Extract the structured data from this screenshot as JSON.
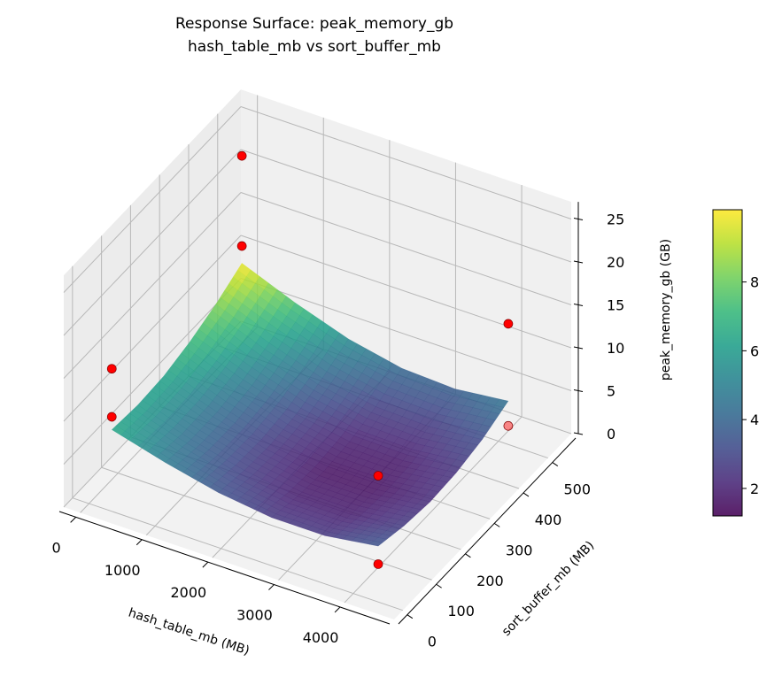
{
  "chart_data": {
    "type": "surface3d",
    "title": "Response Surface: peak_memory_gb",
    "subtitle": "hash_table_mb vs sort_buffer_mb",
    "xlabel": "hash_table_mb (MB)",
    "ylabel": "sort_buffer_mb (MB)",
    "zlabel": "peak_memory_gb (GB)",
    "xlim": [
      -250,
      4750
    ],
    "ylim": [
      -30,
      580
    ],
    "zlim": [
      0,
      27
    ],
    "xticks": [
      "0",
      "1000",
      "2000",
      "3000",
      "4000"
    ],
    "yticks": [
      "0",
      "100",
      "200",
      "300",
      "400",
      "500"
    ],
    "zticks": [
      "0",
      "5",
      "10",
      "15",
      "20",
      "25"
    ],
    "grid": true,
    "colormap": "viridis",
    "colorbar": {
      "range": [
        1.2,
        10.1
      ],
      "ticks": [
        "2",
        "4",
        "6",
        "8"
      ]
    },
    "surface": {
      "x": [
        64,
        870,
        1677,
        2483,
        3290,
        4096
      ],
      "y": [
        64,
        154,
        243,
        333,
        422,
        512
      ],
      "z": [
        [
          6.5,
          6.2,
          6.4,
          7.2,
          8.4,
          10.0
        ],
        [
          4.8,
          4.3,
          4.3,
          4.9,
          6.0,
          7.5
        ],
        [
          3.4,
          2.8,
          2.6,
          3.0,
          4.0,
          5.4
        ],
        [
          2.6,
          1.9,
          1.6,
          1.9,
          2.8,
          4.1
        ],
        [
          2.6,
          1.9,
          1.6,
          1.8,
          2.6,
          3.8
        ],
        [
          3.5,
          2.7,
          2.3,
          2.5,
          3.2,
          4.5
        ]
      ]
    },
    "points": {
      "color": "#ff0000",
      "data": [
        {
          "x": 64,
          "y": 512,
          "z": 22.5
        },
        {
          "x": 64,
          "y": 512,
          "z": 12.0
        },
        {
          "x": 64,
          "y": 64,
          "z": 13.6
        },
        {
          "x": 64,
          "y": 64,
          "z": 8.0
        },
        {
          "x": 4096,
          "y": 512,
          "z": 13.5
        },
        {
          "x": 4096,
          "y": 512,
          "z": 1.6
        },
        {
          "x": 4096,
          "y": 64,
          "z": 11.7
        },
        {
          "x": 4096,
          "y": 64,
          "z": 1.4
        }
      ]
    }
  }
}
